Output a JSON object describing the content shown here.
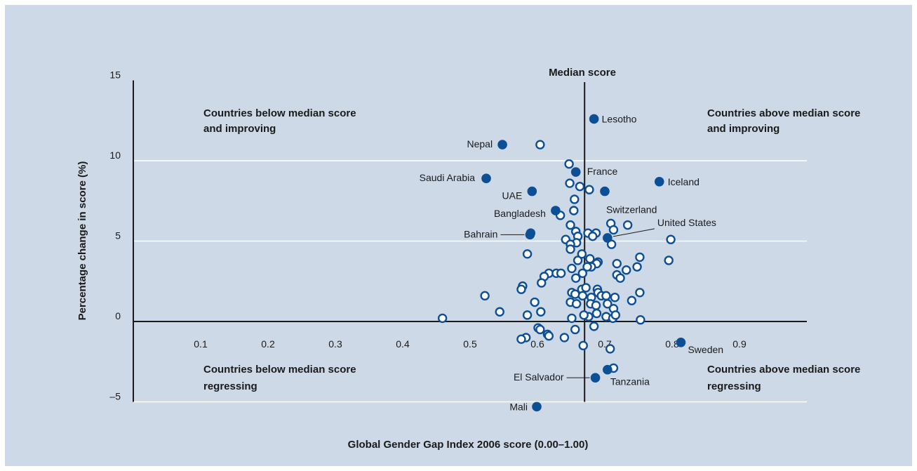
{
  "chart_data": {
    "type": "scatter",
    "xlabel": "Global Gender Gap Index 2006 score (0.00–1.00)",
    "ylabel": "Percentage change in score (%)",
    "xlim": [
      0,
      1.0
    ],
    "ylim": [
      -5,
      15
    ],
    "x_ticks": [
      "0.1",
      "0.2",
      "0.3",
      "0.4",
      "0.5",
      "0.6",
      "0.7",
      "0.8",
      "0.9"
    ],
    "y_ticks": [
      "–5",
      "0",
      "5",
      "10",
      "15"
    ],
    "y_tick_values": [
      -5,
      0,
      5,
      10,
      15
    ],
    "x_tick_values": [
      0.1,
      0.2,
      0.3,
      0.4,
      0.5,
      0.6,
      0.7,
      0.8,
      0.9
    ],
    "gridlines_y": [
      -5,
      5,
      10
    ],
    "median_score": 0.67,
    "median_label": "Median score",
    "quadrant_labels": {
      "top_left": [
        "Countries below median score",
        "and improving"
      ],
      "top_right": [
        "Countries above median score",
        "and improving"
      ],
      "bottom_left": [
        "Countries below median score",
        "regressing"
      ],
      "bottom_right": [
        "Countries above median score",
        "regressing"
      ]
    },
    "colors": {
      "background": "#ced9e8",
      "highlight": "#0d4f94",
      "outline": "#0d4f94",
      "axis": "#1a1a1a",
      "grid": "#ffffff"
    },
    "highlighted": [
      {
        "name": "Lesotho",
        "x": 0.684,
        "y": 12.6
      },
      {
        "name": "Nepal",
        "x": 0.548,
        "y": 11.0
      },
      {
        "name": "Saudi Arabia",
        "x": 0.524,
        "y": 8.9
      },
      {
        "name": "France",
        "x": 0.657,
        "y": 9.3
      },
      {
        "name": "Iceland",
        "x": 0.781,
        "y": 8.7
      },
      {
        "name": "UAE",
        "x": 0.592,
        "y": 8.1
      },
      {
        "name": "Switzerland",
        "x": 0.7,
        "y": 8.1
      },
      {
        "name": "Bangladesh",
        "x": 0.627,
        "y": 6.9
      },
      {
        "name": "United States",
        "x": 0.704,
        "y": 5.2
      },
      {
        "name": "Bahrain",
        "x": 0.589,
        "y": 5.4
      },
      {
        "name": "Sweden",
        "x": 0.813,
        "y": -1.3
      },
      {
        "name": "Tanzania",
        "x": 0.704,
        "y": -3.0
      },
      {
        "name": "El Salvador",
        "x": 0.686,
        "y": -3.5
      },
      {
        "name": "Mali",
        "x": 0.599,
        "y": -5.3
      }
    ],
    "others": [
      [
        0.604,
        11.0
      ],
      [
        0.647,
        9.8
      ],
      [
        0.648,
        8.6
      ],
      [
        0.663,
        8.4
      ],
      [
        0.677,
        8.2
      ],
      [
        0.655,
        7.6
      ],
      [
        0.654,
        6.9
      ],
      [
        0.634,
        6.6
      ],
      [
        0.649,
        6.0
      ],
      [
        0.734,
        6.0
      ],
      [
        0.709,
        6.1
      ],
      [
        0.713,
        5.7
      ],
      [
        0.657,
        5.6
      ],
      [
        0.66,
        5.3
      ],
      [
        0.675,
        5.5
      ],
      [
        0.687,
        5.5
      ],
      [
        0.682,
        5.3
      ],
      [
        0.59,
        5.5
      ],
      [
        0.642,
        5.1
      ],
      [
        0.658,
        4.9
      ],
      [
        0.649,
        4.8
      ],
      [
        0.798,
        5.1
      ],
      [
        0.71,
        4.8
      ],
      [
        0.666,
        4.2
      ],
      [
        0.649,
        4.5
      ],
      [
        0.585,
        4.2
      ],
      [
        0.752,
        4.0
      ],
      [
        0.678,
        3.9
      ],
      [
        0.66,
        3.8
      ],
      [
        0.69,
        3.7
      ],
      [
        0.688,
        3.6
      ],
      [
        0.68,
        3.4
      ],
      [
        0.674,
        3.4
      ],
      [
        0.651,
        3.3
      ],
      [
        0.718,
        3.6
      ],
      [
        0.748,
        3.4
      ],
      [
        0.732,
        3.2
      ],
      [
        0.795,
        3.8
      ],
      [
        0.667,
        3.0
      ],
      [
        0.718,
        2.9
      ],
      [
        0.723,
        2.7
      ],
      [
        0.617,
        3.0
      ],
      [
        0.628,
        3.0
      ],
      [
        0.635,
        3.0
      ],
      [
        0.61,
        2.8
      ],
      [
        0.657,
        2.7
      ],
      [
        0.606,
        2.4
      ],
      [
        0.578,
        2.2
      ],
      [
        0.576,
        2.0
      ],
      [
        0.651,
        1.8
      ],
      [
        0.666,
        2.0
      ],
      [
        0.672,
        2.1
      ],
      [
        0.689,
        2.0
      ],
      [
        0.69,
        1.8
      ],
      [
        0.695,
        1.6
      ],
      [
        0.68,
        1.5
      ],
      [
        0.667,
        1.6
      ],
      [
        0.656,
        1.7
      ],
      [
        0.702,
        1.6
      ],
      [
        0.715,
        1.5
      ],
      [
        0.752,
        1.8
      ],
      [
        0.74,
        1.3
      ],
      [
        0.522,
        1.6
      ],
      [
        0.649,
        1.2
      ],
      [
        0.658,
        1.1
      ],
      [
        0.596,
        1.2
      ],
      [
        0.679,
        1.1
      ],
      [
        0.687,
        1.0
      ],
      [
        0.704,
        1.1
      ],
      [
        0.713,
        0.8
      ],
      [
        0.544,
        0.6
      ],
      [
        0.605,
        0.6
      ],
      [
        0.585,
        0.4
      ],
      [
        0.688,
        0.5
      ],
      [
        0.702,
        0.3
      ],
      [
        0.712,
        0.2
      ],
      [
        0.716,
        0.4
      ],
      [
        0.676,
        0.3
      ],
      [
        0.669,
        0.4
      ],
      [
        0.651,
        0.2
      ],
      [
        0.753,
        0.1
      ],
      [
        0.459,
        0.2
      ],
      [
        0.684,
        -0.3
      ],
      [
        0.601,
        -0.4
      ],
      [
        0.604,
        -0.5
      ],
      [
        0.656,
        -0.5
      ],
      [
        0.615,
        -0.8
      ],
      [
        0.617,
        -0.9
      ],
      [
        0.583,
        -1.0
      ],
      [
        0.576,
        -1.1
      ],
      [
        0.64,
        -1.0
      ],
      [
        0.668,
        -1.5
      ],
      [
        0.708,
        -1.7
      ],
      [
        0.713,
        -2.9
      ]
    ]
  }
}
